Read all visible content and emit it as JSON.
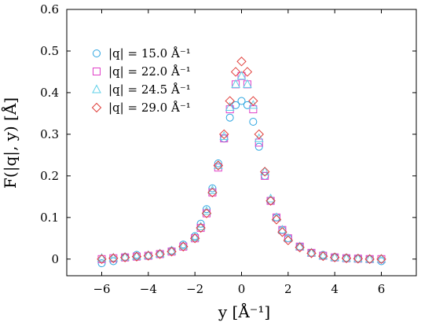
{
  "chart_data": {
    "type": "scatter",
    "xlabel": "y [Å⁻¹]",
    "ylabel": "F(|q|, y) [Å]",
    "xlim": [
      -7.5,
      7.5
    ],
    "ylim": [
      -0.04,
      0.6
    ],
    "x_ticks": [
      -6,
      -4,
      -2,
      0,
      2,
      4,
      6
    ],
    "x_tick_labels": [
      "−6",
      "−4",
      "−2",
      "0",
      "2",
      "4",
      "6"
    ],
    "y_ticks": [
      0,
      0.1,
      0.2,
      0.3,
      0.4,
      0.5,
      0.6
    ],
    "y_tick_labels": [
      "0",
      "0.1",
      "0.2",
      "0.3",
      "0.4",
      "0.5",
      "0.6"
    ],
    "grid": false,
    "legend_position": "top-left",
    "series": [
      {
        "name": "|q| = 15.0  Å⁻¹",
        "marker": "circle",
        "color": "#2ba4e0",
        "x": [
          -6.0,
          -5.5,
          -5.0,
          -4.5,
          -4.0,
          -3.5,
          -3.0,
          -2.5,
          -2.0,
          -1.75,
          -1.5,
          -1.25,
          -1.0,
          -0.75,
          -0.5,
          -0.25,
          0.0,
          0.25,
          0.5,
          0.75,
          1.0,
          1.25,
          1.5,
          1.75,
          2.0,
          2.5,
          3.0,
          3.5,
          4.0,
          4.5,
          5.0,
          5.5,
          6.0
        ],
        "y": [
          -0.01,
          -0.005,
          0.005,
          0.01,
          0.008,
          0.012,
          0.02,
          0.035,
          0.055,
          0.085,
          0.12,
          0.17,
          0.23,
          0.29,
          0.34,
          0.37,
          0.38,
          0.37,
          0.33,
          0.27,
          0.2,
          0.14,
          0.1,
          0.07,
          0.05,
          0.03,
          0.015,
          0.01,
          0.005,
          0.003,
          0.002,
          0.0,
          -0.005
        ]
      },
      {
        "name": "|q| = 22.0  Å⁻¹",
        "marker": "square",
        "color": "#e040c8",
        "x": [
          -6.0,
          -5.5,
          -5.0,
          -4.5,
          -4.0,
          -3.5,
          -3.0,
          -2.5,
          -2.0,
          -1.75,
          -1.5,
          -1.25,
          -1.0,
          -0.75,
          -0.5,
          -0.25,
          0.0,
          0.25,
          0.5,
          0.75,
          1.0,
          1.25,
          1.5,
          1.75,
          2.0,
          2.5,
          3.0,
          3.5,
          4.0,
          4.5,
          5.0,
          5.5,
          6.0
        ],
        "y": [
          0.0,
          0.002,
          0.004,
          0.006,
          0.008,
          0.012,
          0.018,
          0.03,
          0.05,
          0.075,
          0.11,
          0.16,
          0.22,
          0.29,
          0.36,
          0.42,
          0.44,
          0.42,
          0.36,
          0.28,
          0.2,
          0.14,
          0.1,
          0.07,
          0.05,
          0.03,
          0.015,
          0.008,
          0.004,
          0.002,
          0.001,
          0.0,
          0.0
        ]
      },
      {
        "name": "|q| = 24.5  Å⁻¹",
        "marker": "triangle",
        "color": "#5fd0e8",
        "x": [
          -6.0,
          -5.5,
          -5.0,
          -4.5,
          -4.0,
          -3.5,
          -3.0,
          -2.5,
          -2.0,
          -1.75,
          -1.5,
          -1.25,
          -1.0,
          -0.75,
          -0.5,
          -0.25,
          0.0,
          0.25,
          0.5,
          0.75,
          1.0,
          1.25,
          1.5,
          1.75,
          2.0,
          2.5,
          3.0,
          3.5,
          4.0,
          4.5,
          5.0,
          5.5,
          6.0
        ],
        "y": [
          0.002,
          0.003,
          0.005,
          0.007,
          0.009,
          0.013,
          0.02,
          0.032,
          0.052,
          0.078,
          0.115,
          0.165,
          0.225,
          0.295,
          0.365,
          0.42,
          0.44,
          0.42,
          0.37,
          0.29,
          0.21,
          0.145,
          0.1,
          0.07,
          0.05,
          0.03,
          0.015,
          0.008,
          0.004,
          0.002,
          0.001,
          0.0,
          0.0
        ]
      },
      {
        "name": "|q| = 29.0  Å⁻¹",
        "marker": "diamond",
        "color": "#e0403c",
        "x": [
          -6.0,
          -5.5,
          -5.0,
          -4.5,
          -4.0,
          -3.5,
          -3.0,
          -2.5,
          -2.0,
          -1.75,
          -1.5,
          -1.25,
          -1.0,
          -0.75,
          -0.5,
          -0.25,
          0.0,
          0.25,
          0.5,
          0.75,
          1.0,
          1.25,
          1.5,
          1.75,
          2.0,
          2.5,
          3.0,
          3.5,
          4.0,
          4.5,
          5.0,
          5.5,
          6.0
        ],
        "y": [
          0.0,
          0.002,
          0.004,
          0.006,
          0.008,
          0.012,
          0.018,
          0.03,
          0.05,
          0.075,
          0.11,
          0.16,
          0.225,
          0.3,
          0.38,
          0.45,
          0.475,
          0.45,
          0.38,
          0.3,
          0.21,
          0.14,
          0.095,
          0.065,
          0.045,
          0.028,
          0.014,
          0.007,
          0.004,
          0.002,
          0.001,
          0.0,
          0.0
        ]
      }
    ]
  }
}
